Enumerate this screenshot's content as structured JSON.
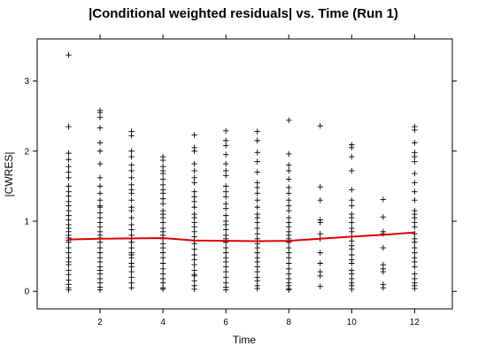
{
  "chart_data": {
    "type": "scatter",
    "title": "|Conditional weighted residuals| vs. Time (Run 1)",
    "xlabel": "Time",
    "ylabel": "|CWRES|",
    "xlim": [
      0,
      13.2
    ],
    "ylim": [
      -0.25,
      3.6
    ],
    "xticks": [
      2,
      4,
      6,
      8,
      10,
      12
    ],
    "yticks": [
      0,
      1,
      2,
      3
    ],
    "grid": false,
    "marker": "+",
    "colors": {
      "points": "#000000",
      "smooth": "#e00000",
      "frame": "#000000"
    },
    "series": [
      {
        "type": "points",
        "points": [
          [
            1,
            3.37
          ],
          [
            1,
            2.35
          ],
          [
            1,
            1.97
          ],
          [
            1,
            1.88
          ],
          [
            1,
            1.78
          ],
          [
            1,
            1.7
          ],
          [
            1,
            1.62
          ],
          [
            1,
            1.5
          ],
          [
            1,
            1.42
          ],
          [
            1,
            1.36
          ],
          [
            1,
            1.28
          ],
          [
            1,
            1.22
          ],
          [
            1,
            1.15
          ],
          [
            1,
            1.08
          ],
          [
            1,
            1.02
          ],
          [
            1,
            0.95
          ],
          [
            1,
            0.9
          ],
          [
            1,
            0.85
          ],
          [
            1,
            0.8
          ],
          [
            1,
            0.76
          ],
          [
            1,
            0.73
          ],
          [
            1,
            0.7
          ],
          [
            1,
            0.62
          ],
          [
            1,
            0.55
          ],
          [
            1,
            0.48
          ],
          [
            1,
            0.42
          ],
          [
            1,
            0.38
          ],
          [
            1,
            0.3
          ],
          [
            1,
            0.24
          ],
          [
            1,
            0.16
          ],
          [
            1,
            0.1
          ],
          [
            1,
            0.05
          ],
          [
            1,
            0.02
          ],
          [
            2,
            2.58
          ],
          [
            2,
            2.55
          ],
          [
            2,
            2.48
          ],
          [
            2,
            2.33
          ],
          [
            2,
            2.12
          ],
          [
            2,
            2.0
          ],
          [
            2,
            1.82
          ],
          [
            2,
            1.62
          ],
          [
            2,
            1.5
          ],
          [
            2,
            1.4
          ],
          [
            2,
            1.3
          ],
          [
            2,
            1.22
          ],
          [
            2,
            1.2
          ],
          [
            2,
            1.12
          ],
          [
            2,
            1.05
          ],
          [
            2,
            0.98
          ],
          [
            2,
            0.92
          ],
          [
            2,
            0.85
          ],
          [
            2,
            0.8
          ],
          [
            2,
            0.76
          ],
          [
            2,
            0.7
          ],
          [
            2,
            0.62
          ],
          [
            2,
            0.55
          ],
          [
            2,
            0.48
          ],
          [
            2,
            0.42
          ],
          [
            2,
            0.35
          ],
          [
            2,
            0.3
          ],
          [
            2,
            0.25
          ],
          [
            2,
            0.18
          ],
          [
            2,
            0.12
          ],
          [
            2,
            0.06
          ],
          [
            2,
            0.02
          ],
          [
            3,
            2.28
          ],
          [
            3,
            2.22
          ],
          [
            3,
            2.0
          ],
          [
            3,
            1.92
          ],
          [
            3,
            1.8
          ],
          [
            3,
            1.72
          ],
          [
            3,
            1.62
          ],
          [
            3,
            1.52
          ],
          [
            3,
            1.45
          ],
          [
            3,
            1.4
          ],
          [
            3,
            1.3
          ],
          [
            3,
            1.2
          ],
          [
            3,
            1.15
          ],
          [
            3,
            1.05
          ],
          [
            3,
            0.95
          ],
          [
            3,
            0.88
          ],
          [
            3,
            0.8
          ],
          [
            3,
            0.75
          ],
          [
            3,
            0.7
          ],
          [
            3,
            0.62
          ],
          [
            3,
            0.55
          ],
          [
            3,
            0.52
          ],
          [
            3,
            0.48
          ],
          [
            3,
            0.4
          ],
          [
            3,
            0.35
          ],
          [
            3,
            0.28
          ],
          [
            3,
            0.2
          ],
          [
            3,
            0.12
          ],
          [
            3,
            0.05
          ],
          [
            4,
            1.92
          ],
          [
            4,
            1.87
          ],
          [
            4,
            1.78
          ],
          [
            4,
            1.72
          ],
          [
            4,
            1.68
          ],
          [
            4,
            1.6
          ],
          [
            4,
            1.52
          ],
          [
            4,
            1.45
          ],
          [
            4,
            1.4
          ],
          [
            4,
            1.32
          ],
          [
            4,
            1.25
          ],
          [
            4,
            1.15
          ],
          [
            4,
            1.1
          ],
          [
            4,
            1.05
          ],
          [
            4,
            0.98
          ],
          [
            4,
            0.9
          ],
          [
            4,
            0.85
          ],
          [
            4,
            0.8
          ],
          [
            4,
            0.75
          ],
          [
            4,
            0.68
          ],
          [
            4,
            0.62
          ],
          [
            4,
            0.55
          ],
          [
            4,
            0.48
          ],
          [
            4,
            0.4
          ],
          [
            4,
            0.32
          ],
          [
            4,
            0.25
          ],
          [
            4,
            0.18
          ],
          [
            4,
            0.12
          ],
          [
            4,
            0.05
          ],
          [
            4,
            0.03
          ],
          [
            5,
            2.23
          ],
          [
            5,
            2.05
          ],
          [
            5,
            2.0
          ],
          [
            5,
            1.82
          ],
          [
            5,
            1.72
          ],
          [
            5,
            1.62
          ],
          [
            5,
            1.55
          ],
          [
            5,
            1.42
          ],
          [
            5,
            1.35
          ],
          [
            5,
            1.28
          ],
          [
            5,
            1.2
          ],
          [
            5,
            1.1
          ],
          [
            5,
            1.05
          ],
          [
            5,
            0.98
          ],
          [
            5,
            0.92
          ],
          [
            5,
            0.85
          ],
          [
            5,
            0.78
          ],
          [
            5,
            0.72
          ],
          [
            5,
            0.68
          ],
          [
            5,
            0.6
          ],
          [
            5,
            0.52
          ],
          [
            5,
            0.45
          ],
          [
            5,
            0.38
          ],
          [
            5,
            0.3
          ],
          [
            5,
            0.24
          ],
          [
            5,
            0.22
          ],
          [
            5,
            0.15
          ],
          [
            5,
            0.08
          ],
          [
            5,
            0.03
          ],
          [
            6,
            2.29
          ],
          [
            6,
            2.15
          ],
          [
            6,
            2.08
          ],
          [
            6,
            1.95
          ],
          [
            6,
            1.82
          ],
          [
            6,
            1.72
          ],
          [
            6,
            1.65
          ],
          [
            6,
            1.5
          ],
          [
            6,
            1.42
          ],
          [
            6,
            1.35
          ],
          [
            6,
            1.25
          ],
          [
            6,
            1.18
          ],
          [
            6,
            1.08
          ],
          [
            6,
            1.0
          ],
          [
            6,
            0.95
          ],
          [
            6,
            0.88
          ],
          [
            6,
            0.8
          ],
          [
            6,
            0.75
          ],
          [
            6,
            0.7
          ],
          [
            6,
            0.62
          ],
          [
            6,
            0.55
          ],
          [
            6,
            0.48
          ],
          [
            6,
            0.42
          ],
          [
            6,
            0.35
          ],
          [
            6,
            0.28
          ],
          [
            6,
            0.2
          ],
          [
            6,
            0.12
          ],
          [
            6,
            0.06
          ],
          [
            6,
            0.02
          ],
          [
            7,
            2.28
          ],
          [
            7,
            2.15
          ],
          [
            7,
            1.98
          ],
          [
            7,
            1.85
          ],
          [
            7,
            1.7
          ],
          [
            7,
            1.55
          ],
          [
            7,
            1.48
          ],
          [
            7,
            1.4
          ],
          [
            7,
            1.3
          ],
          [
            7,
            1.2
          ],
          [
            7,
            1.1
          ],
          [
            7,
            1.05
          ],
          [
            7,
            0.98
          ],
          [
            7,
            0.9
          ],
          [
            7,
            0.82
          ],
          [
            7,
            0.75
          ],
          [
            7,
            0.68
          ],
          [
            7,
            0.62
          ],
          [
            7,
            0.55
          ],
          [
            7,
            0.48
          ],
          [
            7,
            0.42
          ],
          [
            7,
            0.35
          ],
          [
            7,
            0.28
          ],
          [
            7,
            0.2
          ],
          [
            7,
            0.15
          ],
          [
            7,
            0.08
          ],
          [
            7,
            0.04
          ],
          [
            8,
            2.44
          ],
          [
            8,
            1.96
          ],
          [
            8,
            1.8
          ],
          [
            8,
            1.72
          ],
          [
            8,
            1.6
          ],
          [
            8,
            1.48
          ],
          [
            8,
            1.4
          ],
          [
            8,
            1.3
          ],
          [
            8,
            1.22
          ],
          [
            8,
            1.15
          ],
          [
            8,
            1.05
          ],
          [
            8,
            0.98
          ],
          [
            8,
            0.92
          ],
          [
            8,
            0.85
          ],
          [
            8,
            0.8
          ],
          [
            8,
            0.75
          ],
          [
            8,
            0.7
          ],
          [
            8,
            0.62
          ],
          [
            8,
            0.55
          ],
          [
            8,
            0.48
          ],
          [
            8,
            0.4
          ],
          [
            8,
            0.32
          ],
          [
            8,
            0.25
          ],
          [
            8,
            0.18
          ],
          [
            8,
            0.12
          ],
          [
            8,
            0.08
          ],
          [
            8,
            0.04
          ],
          [
            8,
            0.02
          ],
          [
            9,
            2.36
          ],
          [
            9,
            1.49
          ],
          [
            9,
            1.3
          ],
          [
            9,
            1.02
          ],
          [
            9,
            0.98
          ],
          [
            9,
            0.82
          ],
          [
            9,
            0.75
          ],
          [
            9,
            0.55
          ],
          [
            9,
            0.4
          ],
          [
            9,
            0.28
          ],
          [
            9,
            0.22
          ],
          [
            9,
            0.07
          ],
          [
            10,
            2.09
          ],
          [
            10,
            2.05
          ],
          [
            10,
            1.92
          ],
          [
            10,
            1.72
          ],
          [
            10,
            1.45
          ],
          [
            10,
            1.3
          ],
          [
            10,
            1.22
          ],
          [
            10,
            1.1
          ],
          [
            10,
            1.05
          ],
          [
            10,
            0.98
          ],
          [
            10,
            0.9
          ],
          [
            10,
            0.85
          ],
          [
            10,
            0.78
          ],
          [
            10,
            0.72
          ],
          [
            10,
            0.65
          ],
          [
            10,
            0.6
          ],
          [
            10,
            0.52
          ],
          [
            10,
            0.45
          ],
          [
            10,
            0.4
          ],
          [
            10,
            0.3
          ],
          [
            10,
            0.25
          ],
          [
            10,
            0.18
          ],
          [
            10,
            0.12
          ],
          [
            10,
            0.08
          ],
          [
            10,
            0.03
          ],
          [
            11,
            1.31
          ],
          [
            11,
            1.06
          ],
          [
            11,
            0.85
          ],
          [
            11,
            0.82
          ],
          [
            11,
            0.62
          ],
          [
            11,
            0.38
          ],
          [
            11,
            0.32
          ],
          [
            11,
            0.28
          ],
          [
            11,
            0.1
          ],
          [
            11,
            0.05
          ],
          [
            12,
            2.35
          ],
          [
            12,
            2.3
          ],
          [
            12,
            2.12
          ],
          [
            12,
            1.98
          ],
          [
            12,
            1.92
          ],
          [
            12,
            1.85
          ],
          [
            12,
            1.68
          ],
          [
            12,
            1.55
          ],
          [
            12,
            1.42
          ],
          [
            12,
            1.3
          ],
          [
            12,
            1.15
          ],
          [
            12,
            1.1
          ],
          [
            12,
            1.05
          ],
          [
            12,
            0.98
          ],
          [
            12,
            0.92
          ],
          [
            12,
            0.82
          ],
          [
            12,
            0.75
          ],
          [
            12,
            0.7
          ],
          [
            12,
            0.62
          ],
          [
            12,
            0.55
          ],
          [
            12,
            0.48
          ],
          [
            12,
            0.42
          ],
          [
            12,
            0.35
          ],
          [
            12,
            0.25
          ],
          [
            12,
            0.18
          ],
          [
            12,
            0.12
          ],
          [
            12,
            0.08
          ],
          [
            12,
            0.04
          ]
        ]
      },
      {
        "type": "smooth",
        "points": [
          [
            1,
            0.74
          ],
          [
            2,
            0.75
          ],
          [
            3,
            0.755
          ],
          [
            4,
            0.76
          ],
          [
            5,
            0.725
          ],
          [
            6,
            0.72
          ],
          [
            7,
            0.715
          ],
          [
            8,
            0.72
          ],
          [
            9,
            0.75
          ],
          [
            10,
            0.78
          ],
          [
            11,
            0.805
          ],
          [
            12,
            0.84
          ]
        ]
      }
    ]
  }
}
